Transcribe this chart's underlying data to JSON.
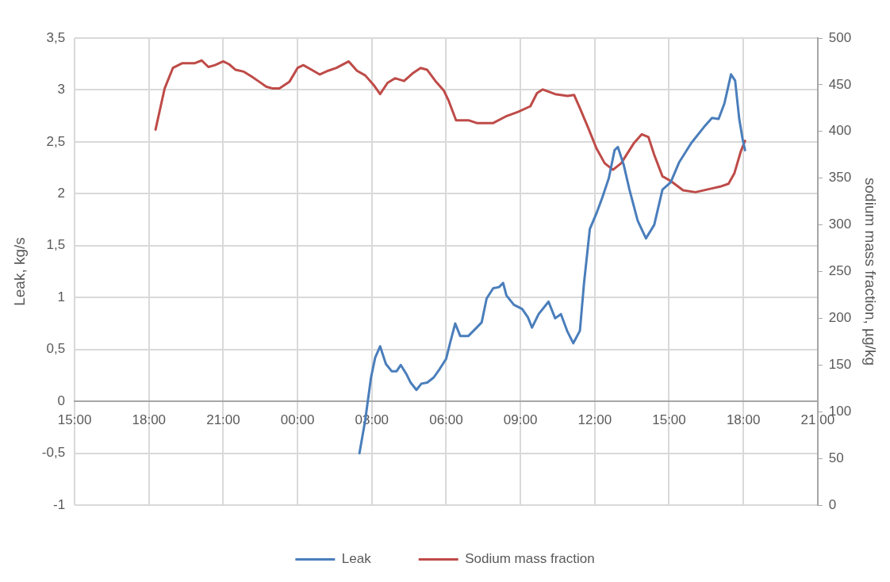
{
  "chart_data": {
    "type": "line",
    "ylabel": "Leak, kg/s",
    "y2label": "sodium mass fraction, µg/kg",
    "xlim": [
      "2000-01-01T15:00",
      "2000-01-02T21:00"
    ],
    "xticks": [
      {
        "value": "2000-01-01T15:00",
        "label": "15:00"
      },
      {
        "value": "2000-01-01T18:00",
        "label": "18:00"
      },
      {
        "value": "2000-01-01T21:00",
        "label": "21:00"
      },
      {
        "value": "2000-01-02T00:00",
        "label": "00:00"
      },
      {
        "value": "2000-01-02T03:00",
        "label": "03:00"
      },
      {
        "value": "2000-01-02T06:00",
        "label": "06:00"
      },
      {
        "value": "2000-01-02T09:00",
        "label": "09:00"
      },
      {
        "value": "2000-01-02T12:00",
        "label": "12:00"
      },
      {
        "value": "2000-01-02T15:00",
        "label": "15:00"
      },
      {
        "value": "2000-01-02T18:00",
        "label": "18:00"
      },
      {
        "value": "2000-01-02T21:00",
        "label": "21:00"
      }
    ],
    "ylim": [
      -1,
      3.5
    ],
    "yticks": [
      -1,
      {
        "value": -0.5,
        "label": "-0,5"
      },
      0,
      {
        "value": 0.5,
        "label": "0,5"
      },
      1,
      {
        "value": 1.5,
        "label": "1,5"
      },
      2,
      {
        "value": 2.5,
        "label": "2,5"
      },
      3,
      {
        "value": 3.5,
        "label": "3,5"
      }
    ],
    "y2lim": [
      0,
      500
    ],
    "y2ticks": [
      0,
      50,
      100,
      150,
      200,
      250,
      300,
      350,
      400,
      450,
      500
    ],
    "grid": true,
    "legend": "bottom",
    "marker": "none",
    "line_style": "solid",
    "series": [
      {
        "name": "Leak",
        "color": "#4a7ebb",
        "axis": "y",
        "x": [
          "2000-01-02T02:30",
          "2000-01-02T02:44",
          "2000-01-02T02:58",
          "2000-01-02T03:08",
          "2000-01-02T03:20",
          "2000-01-02T03:34",
          "2000-01-02T03:48",
          "2000-01-02T04:00",
          "2000-01-02T04:10",
          "2000-01-02T04:24",
          "2000-01-02T04:34",
          "2000-01-02T04:48",
          "2000-01-02T05:00",
          "2000-01-02T05:14",
          "2000-01-02T05:30",
          "2000-01-02T05:44",
          "2000-01-02T06:00",
          "2000-01-02T06:10",
          "2000-01-02T06:22",
          "2000-01-02T06:34",
          "2000-01-02T06:54",
          "2000-01-02T07:14",
          "2000-01-02T07:26",
          "2000-01-02T07:38",
          "2000-01-02T07:54",
          "2000-01-02T08:08",
          "2000-01-02T08:18",
          "2000-01-02T08:26",
          "2000-01-02T08:44",
          "2000-01-02T09:04",
          "2000-01-02T09:18",
          "2000-01-02T09:28",
          "2000-01-02T09:44",
          "2000-01-02T10:08",
          "2000-01-02T10:24",
          "2000-01-02T10:38",
          "2000-01-02T10:54",
          "2000-01-02T11:08",
          "2000-01-02T11:24",
          "2000-01-02T11:34",
          "2000-01-02T11:48",
          "2000-01-02T12:04",
          "2000-01-02T12:18",
          "2000-01-02T12:34",
          "2000-01-02T12:48",
          "2000-01-02T12:56",
          "2000-01-02T13:10",
          "2000-01-02T13:24",
          "2000-01-02T13:44",
          "2000-01-02T14:04",
          "2000-01-02T14:24",
          "2000-01-02T14:44",
          "2000-01-02T15:04",
          "2000-01-02T15:24",
          "2000-01-02T15:54",
          "2000-01-02T16:24",
          "2000-01-02T16:44",
          "2000-01-02T17:00",
          "2000-01-02T17:14",
          "2000-01-02T17:30",
          "2000-01-02T17:40",
          "2000-01-02T17:50",
          "2000-01-02T17:58",
          "2000-01-02T18:04"
        ],
        "values": [
          -0.5,
          -0.18,
          0.23,
          0.42,
          0.53,
          0.36,
          0.29,
          0.29,
          0.35,
          0.26,
          0.18,
          0.11,
          0.17,
          0.18,
          0.23,
          0.31,
          0.41,
          0.57,
          0.75,
          0.63,
          0.63,
          0.71,
          0.76,
          0.99,
          1.09,
          1.1,
          1.14,
          1.02,
          0.93,
          0.89,
          0.81,
          0.71,
          0.84,
          0.96,
          0.8,
          0.84,
          0.67,
          0.56,
          0.68,
          1.14,
          1.66,
          1.81,
          1.96,
          2.15,
          2.42,
          2.45,
          2.28,
          2.04,
          1.74,
          1.57,
          1.7,
          2.04,
          2.11,
          2.3,
          2.49,
          2.64,
          2.73,
          2.72,
          2.87,
          3.15,
          3.09,
          2.72,
          2.53,
          2.42
        ]
      },
      {
        "name": "Sodium mass fraction",
        "color": "#be4b48",
        "axis": "y2",
        "x": [
          "2000-01-01T18:16",
          "2000-01-01T18:38",
          "2000-01-01T18:58",
          "2000-01-01T19:20",
          "2000-01-01T19:50",
          "2000-01-01T20:08",
          "2000-01-01T20:24",
          "2000-01-01T20:40",
          "2000-01-01T21:00",
          "2000-01-01T21:14",
          "2000-01-01T21:30",
          "2000-01-01T21:50",
          "2000-01-01T22:08",
          "2000-01-01T22:28",
          "2000-01-01T22:44",
          "2000-01-01T23:00",
          "2000-01-01T23:16",
          "2000-01-01T23:40",
          "2000-01-02T00:00",
          "2000-01-02T00:14",
          "2000-01-02T00:34",
          "2000-01-02T00:54",
          "2000-01-02T01:14",
          "2000-01-02T01:34",
          "2000-01-02T02:04",
          "2000-01-02T02:24",
          "2000-01-02T02:44",
          "2000-01-02T03:04",
          "2000-01-02T03:20",
          "2000-01-02T03:38",
          "2000-01-02T03:56",
          "2000-01-02T04:18",
          "2000-01-02T04:38",
          "2000-01-02T04:58",
          "2000-01-02T05:14",
          "2000-01-02T05:34",
          "2000-01-02T05:54",
          "2000-01-02T06:06",
          "2000-01-02T06:24",
          "2000-01-02T06:54",
          "2000-01-02T07:14",
          "2000-01-02T07:54",
          "2000-01-02T08:24",
          "2000-01-02T08:54",
          "2000-01-02T09:24",
          "2000-01-02T09:40",
          "2000-01-02T09:54",
          "2000-01-02T10:24",
          "2000-01-02T10:54",
          "2000-01-02T11:10",
          "2000-01-02T11:24",
          "2000-01-02T11:44",
          "2000-01-02T12:04",
          "2000-01-02T12:24",
          "2000-01-02T12:44",
          "2000-01-02T13:04",
          "2000-01-02T13:34",
          "2000-01-02T13:54",
          "2000-01-02T14:10",
          "2000-01-02T14:24",
          "2000-01-02T14:44",
          "2000-01-02T15:04",
          "2000-01-02T15:34",
          "2000-01-02T16:04",
          "2000-01-02T16:44",
          "2000-01-02T17:04",
          "2000-01-02T17:24",
          "2000-01-02T17:38",
          "2000-01-02T17:54",
          "2000-01-02T18:04"
        ],
        "values": [
          402,
          446,
          468,
          473,
          473,
          476,
          469,
          471,
          475,
          472,
          466,
          464,
          459,
          453,
          448,
          446,
          446,
          453,
          468,
          471,
          466,
          461,
          465,
          468,
          475,
          465,
          460,
          450,
          440,
          452,
          457,
          454,
          462,
          468,
          466,
          454,
          444,
          433,
          412,
          412,
          409,
          409,
          416,
          421,
          427,
          441,
          445,
          440,
          438,
          439,
          425,
          404,
          382,
          366,
          359,
          366,
          387,
          397,
          394,
          375,
          352,
          347,
          337,
          335,
          339,
          341,
          344,
          355,
          379,
          390
        ]
      }
    ]
  }
}
